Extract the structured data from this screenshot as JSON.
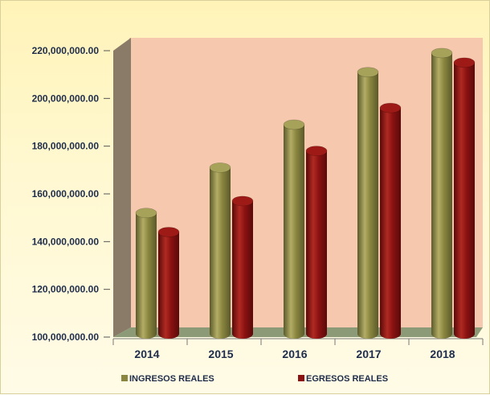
{
  "chart_data": {
    "type": "bar",
    "title": "",
    "xlabel": "",
    "ylabel": "",
    "categories": [
      "2014",
      "2015",
      "2016",
      "2017",
      "2018"
    ],
    "series": [
      {
        "name": "INGRESOS REALES",
        "values": [
          152000000,
          171000000,
          189000000,
          211000000,
          219000000
        ],
        "color": "#8a8640"
      },
      {
        "name": "EGRESOS REALES",
        "values": [
          144000000,
          157000000,
          178000000,
          196000000,
          215000000
        ],
        "color": "#8b1212"
      }
    ],
    "ylim": [
      100000000,
      220000000
    ],
    "yticks": [
      {
        "value": 220000000,
        "label": "220,000,000.00"
      },
      {
        "value": 200000000,
        "label": "200,000,000.00"
      },
      {
        "value": 180000000,
        "label": "180,000,000.00"
      },
      {
        "value": 160000000,
        "label": "160,000,000.00"
      },
      {
        "value": 140000000,
        "label": "140,000,000.00"
      },
      {
        "value": 120000000,
        "label": "120,000,000.00"
      },
      {
        "value": 100000000,
        "label": "100,000,000.00"
      }
    ],
    "grid": false,
    "legend": "bottom",
    "style": "3d-cylinder",
    "colors": {
      "wall": "#f6c8ae",
      "side_wall": "#8a7a68",
      "floor": "#8c9a78"
    }
  }
}
